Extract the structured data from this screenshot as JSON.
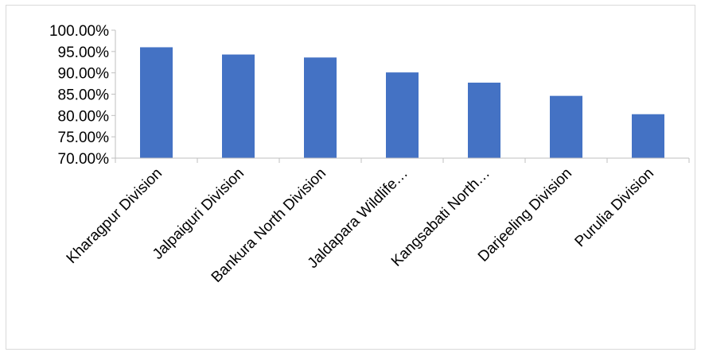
{
  "chart_data": {
    "type": "bar",
    "title": "",
    "xlabel": "",
    "ylabel": "",
    "categories": [
      "Kharagpur Division",
      "Jalpaiguri Division",
      "Bankura North Division",
      "Jaldapara Wildlife…",
      "Kangsabati North…",
      "Darjeeling Division",
      "Purulia Division"
    ],
    "values": [
      96.0,
      94.3,
      93.6,
      90.1,
      87.7,
      84.6,
      80.3
    ],
    "ylim": [
      70,
      100
    ],
    "yticks": [
      70,
      75,
      80,
      85,
      90,
      95,
      100
    ],
    "ytick_labels": [
      "70.00%",
      "75.00%",
      "80.00%",
      "85.00%",
      "90.00%",
      "95.00%",
      "100.00%"
    ],
    "bar_color": "#4472c4",
    "grid": false,
    "legend": "none"
  }
}
